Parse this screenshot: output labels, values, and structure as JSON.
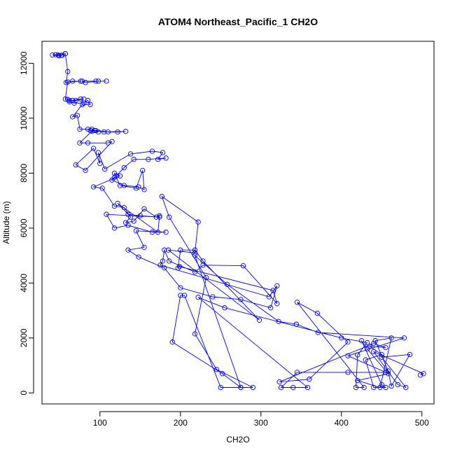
{
  "chart_data": {
    "type": "line",
    "title": "ATOM4 Northeast_Pacific_1 CH2O",
    "xlabel": "CH2O",
    "ylabel": "Altitude (m)",
    "xlim": [
      28,
      515
    ],
    "ylim": [
      -400,
      12800
    ],
    "xticks": [
      100,
      200,
      300,
      400,
      500
    ],
    "yticks": [
      0,
      2000,
      4000,
      6000,
      8000,
      10000,
      12000
    ],
    "grid": false,
    "legend": "none",
    "style": {
      "line_color": "#0000ff",
      "marker": "open-circle",
      "axis_color": "#000000"
    },
    "series": [
      {
        "points": [
          [
            45,
            12310
          ],
          [
            48,
            12300
          ],
          [
            52,
            12290
          ],
          [
            57,
            12350
          ],
          [
            53,
            12290
          ],
          [
            49,
            12270
          ],
          [
            41,
            12300
          ],
          [
            57,
            12350
          ],
          [
            60,
            11700
          ],
          [
            58,
            11300
          ],
          [
            66,
            11350
          ],
          [
            78,
            11350
          ],
          [
            82,
            11300
          ],
          [
            98,
            11350
          ],
          [
            108,
            11350
          ],
          [
            95,
            11350
          ],
          [
            76,
            11350
          ],
          [
            60,
            11320
          ],
          [
            57,
            10700
          ],
          [
            62,
            10650
          ],
          [
            70,
            10650
          ],
          [
            80,
            10700
          ],
          [
            76,
            10700
          ],
          [
            66,
            10650
          ],
          [
            60,
            10680
          ],
          [
            62,
            10600
          ],
          [
            68,
            10550
          ],
          [
            80,
            10550
          ],
          [
            85,
            10650
          ],
          [
            88,
            10500
          ],
          [
            78,
            10500
          ],
          [
            66,
            10050
          ],
          [
            72,
            10100
          ],
          [
            75,
            9600
          ],
          [
            85,
            9600
          ],
          [
            88,
            9550
          ],
          [
            95,
            9550
          ],
          [
            110,
            9500
          ],
          [
            122,
            9500
          ],
          [
            132,
            9520
          ],
          [
            105,
            9500
          ],
          [
            93,
            9550
          ],
          [
            90,
            9600
          ],
          [
            98,
            9500
          ],
          [
            90,
            9530
          ],
          [
            75,
            9100
          ],
          [
            85,
            9100
          ],
          [
            110,
            9100
          ],
          [
            115,
            9150
          ],
          [
            82,
            8100
          ],
          [
            70,
            8300
          ],
          [
            92,
            8900
          ],
          [
            100,
            8350
          ],
          [
            98,
            8750
          ],
          [
            106,
            8150
          ],
          [
            138,
            8700
          ],
          [
            165,
            8800
          ],
          [
            178,
            8750
          ],
          [
            172,
            8500
          ],
          [
            182,
            8550
          ],
          [
            160,
            8500
          ],
          [
            142,
            8500
          ],
          [
            130,
            8200
          ],
          [
            120,
            7900
          ],
          [
            118,
            7850
          ],
          [
            115,
            7750
          ],
          [
            130,
            7550
          ],
          [
            148,
            7500
          ],
          [
            155,
            7400
          ],
          [
            153,
            8100
          ],
          [
            145,
            7450
          ],
          [
            125,
            7550
          ],
          [
            118,
            8000
          ],
          [
            125,
            7900
          ],
          [
            92,
            7500
          ],
          [
            103,
            7450
          ],
          [
            118,
            6800
          ],
          [
            130,
            6750
          ],
          [
            138,
            6400
          ],
          [
            132,
            6200
          ],
          [
            142,
            6250
          ],
          [
            155,
            6700
          ],
          [
            170,
            6400
          ],
          [
            174,
            6450
          ],
          [
            172,
            5850
          ],
          [
            122,
            6900
          ],
          [
            135,
            6500
          ],
          [
            150,
            6450
          ],
          [
            174,
            6400
          ],
          [
            108,
            6500
          ],
          [
            118,
            6000
          ],
          [
            135,
            6100
          ],
          [
            165,
            5850
          ],
          [
            182,
            5850
          ],
          [
            145,
            5900
          ],
          [
            155,
            5300
          ],
          [
            135,
            5200
          ],
          [
            148,
            4950
          ],
          [
            180,
            4550
          ],
          [
            200,
            3830
          ],
          [
            240,
            3500
          ],
          [
            275,
            3400
          ],
          [
            312,
            3100
          ],
          [
            320,
            3900
          ],
          [
            310,
            3500
          ],
          [
            175,
            4650
          ],
          [
            178,
            4800
          ],
          [
            180,
            5200
          ],
          [
            186,
            4800
          ],
          [
            218,
            4400
          ],
          [
            228,
            4650
          ],
          [
            278,
            4630
          ],
          [
            320,
            3250
          ],
          [
            315,
            3730
          ],
          [
            199,
            4600
          ],
          [
            197,
            4550
          ],
          [
            200,
            5200
          ],
          [
            218,
            5200
          ],
          [
            228,
            4800
          ],
          [
            298,
            2650
          ],
          [
            185,
            5200
          ],
          [
            218,
            5100
          ],
          [
            222,
            6220
          ],
          [
            177,
            7150
          ],
          [
            186,
            6400
          ],
          [
            232,
            4200
          ],
          [
            218,
            2150
          ],
          [
            245,
            850
          ],
          [
            290,
            200
          ],
          [
            275,
            200
          ],
          [
            250,
            200
          ],
          [
            205,
            3550
          ],
          [
            200,
            3550
          ],
          [
            190,
            1850
          ],
          [
            252,
            700
          ],
          [
            275,
            200
          ],
          [
            218,
            5000
          ],
          [
            258,
            3950
          ],
          [
            322,
            2600
          ],
          [
            344,
            2500
          ],
          [
            371,
            2200
          ],
          [
            478,
            2000
          ],
          [
            408,
            1350
          ],
          [
            455,
            750
          ],
          [
            408,
            750
          ],
          [
            345,
            750
          ],
          [
            325,
            200
          ],
          [
            340,
            200
          ],
          [
            358,
            200
          ],
          [
            222,
            3480
          ],
          [
            255,
            3100
          ],
          [
            400,
            2000
          ],
          [
            432,
            1830
          ],
          [
            420,
            1380
          ],
          [
            418,
            200
          ],
          [
            428,
            200
          ],
          [
            345,
            3300
          ],
          [
            370,
            2900
          ],
          [
            408,
            1850
          ],
          [
            360,
            500
          ],
          [
            323,
            400
          ],
          [
            440,
            1800
          ],
          [
            455,
            1650
          ],
          [
            435,
            1700
          ],
          [
            450,
            1400
          ],
          [
            430,
            1200
          ],
          [
            440,
            200
          ],
          [
            455,
            200
          ],
          [
            450,
            300
          ],
          [
            425,
            1900
          ],
          [
            432,
            1600
          ],
          [
            458,
            700
          ],
          [
            420,
            450
          ],
          [
            448,
            200
          ],
          [
            462,
            2000
          ],
          [
            442,
            1900
          ],
          [
            458,
            800
          ],
          [
            462,
            250
          ],
          [
            485,
            1400
          ],
          [
            450,
            1300
          ],
          [
            480,
            200
          ],
          [
            470,
            300
          ],
          [
            440,
            1500
          ],
          [
            502,
            700
          ],
          [
            498,
            650
          ]
        ]
      }
    ]
  }
}
